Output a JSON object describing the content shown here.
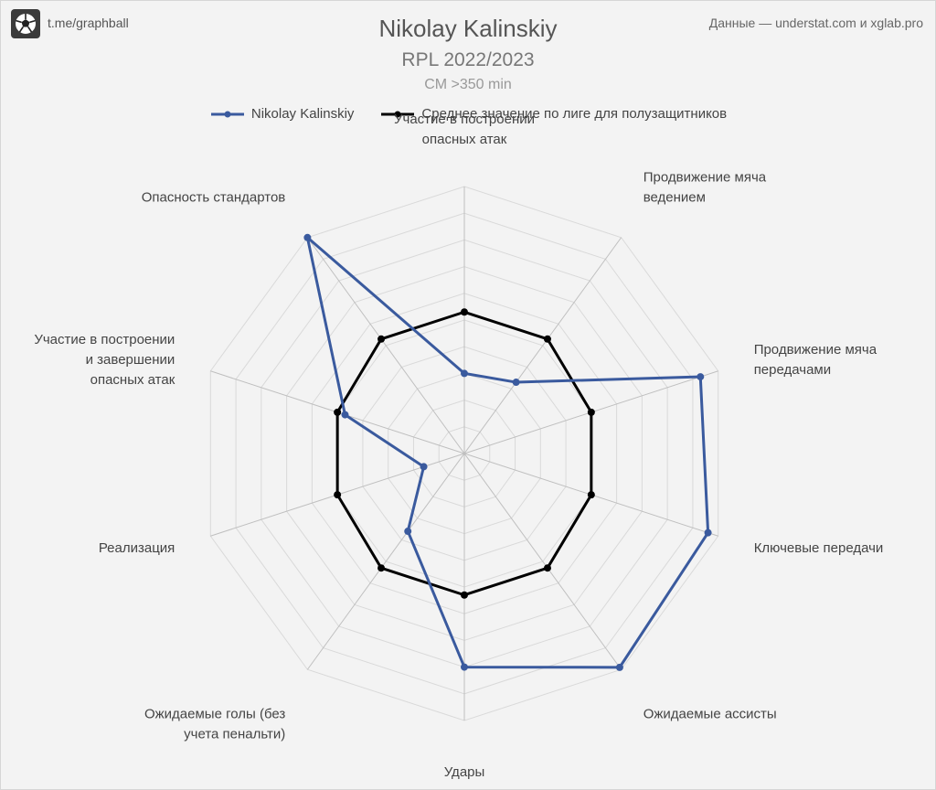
{
  "header": {
    "channel": "t.me/graphball",
    "source": "Данные — understat.com и xglab.pro",
    "logo_icon": "soccer-ball-icon"
  },
  "chart_data": {
    "type": "radar",
    "title": "Nikolay Kalinskiy",
    "subtitle": "RPL 2022/2023",
    "note": "CM >350 min",
    "axes": [
      "Участие в построении\nопасных атак",
      "Продвижение мяча\nведением",
      "Продвижение мяча\nпередачами",
      "Ключевые передачи",
      "Ожидаемые ассисты",
      "Удары",
      "Ожидаемые голы (без\nучета пенальти)",
      "Реализация",
      "Участие в построении\nи завершении\nопасных атак",
      "Опасность стандартов"
    ],
    "range": [
      0,
      10
    ],
    "grid_rings": 10,
    "grid": true,
    "legend_position": "top",
    "series": [
      {
        "name": "Nikolay Kalinskiy",
        "color": "#3a5a9e",
        "values": [
          3.0,
          3.3,
          9.3,
          9.6,
          9.9,
          8.0,
          3.6,
          1.6,
          4.7,
          10.0
        ]
      },
      {
        "name": "Среднее значение по лиге для полузащитников",
        "color": "#000000",
        "values": [
          5.3,
          5.3,
          5.0,
          5.0,
          5.3,
          5.3,
          5.3,
          5.0,
          5.0,
          5.3
        ]
      }
    ]
  }
}
